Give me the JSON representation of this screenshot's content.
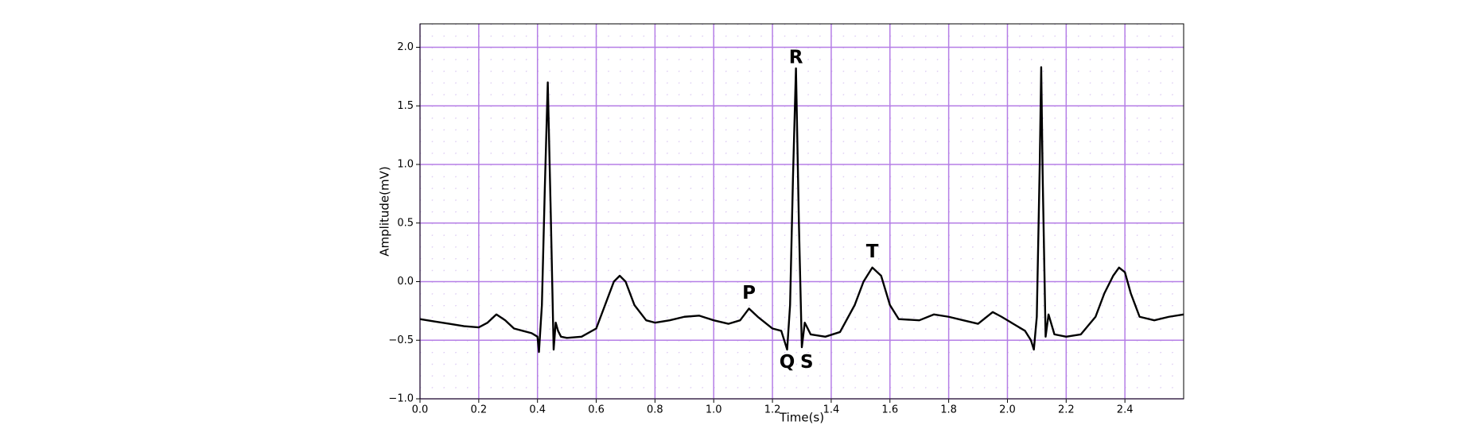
{
  "chart_data": {
    "type": "line",
    "x_label": "Time(s)",
    "y_label": "Amplitude(mV)",
    "xlim": [
      0,
      2.6
    ],
    "ylim": [
      -1.0,
      2.2
    ],
    "xticks": [
      {
        "value": 0,
        "label": "0.0"
      },
      0.2,
      0.4,
      0.6,
      0.8,
      {
        "value": 1,
        "label": "1.0"
      },
      1.2,
      1.4,
      1.6,
      1.8,
      {
        "value": 2,
        "label": "2.0"
      },
      2.2,
      2.4
    ],
    "yticks": [
      {
        "value": -1,
        "label": "−1.0"
      },
      {
        "value": -0.5,
        "label": "−0.5"
      },
      {
        "value": 0,
        "label": "0.0"
      },
      0.5,
      {
        "value": 1,
        "label": "1.0"
      },
      1.5,
      {
        "value": 2,
        "label": "2.0"
      }
    ],
    "grid": true,
    "grid_color": "#b57ee6",
    "minor_dot_color": "#dccbf2",
    "series": [
      {
        "color": "#000000",
        "x": [
          0,
          0.05,
          0.1,
          0.15,
          0.2,
          0.23,
          0.26,
          0.29,
          0.32,
          0.35,
          0.38,
          0.4,
          0.405,
          0.415,
          0.425,
          0.435,
          0.445,
          0.455,
          0.462,
          0.47,
          0.48,
          0.5,
          0.55,
          0.6,
          0.63,
          0.66,
          0.68,
          0.7,
          0.73,
          0.77,
          0.8,
          0.85,
          0.9,
          0.95,
          1.0,
          1.05,
          1.09,
          1.12,
          1.15,
          1.2,
          1.23,
          1.25,
          1.26,
          1.27,
          1.28,
          1.29,
          1.3,
          1.31,
          1.33,
          1.38,
          1.43,
          1.48,
          1.51,
          1.54,
          1.57,
          1.6,
          1.63,
          1.7,
          1.75,
          1.8,
          1.85,
          1.9,
          1.95,
          1.98,
          2.02,
          2.06,
          2.08,
          2.09,
          2.1,
          2.11,
          2.115,
          2.12,
          2.13,
          2.14,
          2.16,
          2.2,
          2.25,
          2.3,
          2.33,
          2.36,
          2.38,
          2.4,
          2.42,
          2.45,
          2.5,
          2.55,
          2.6
        ],
        "values": [
          -0.32,
          -0.34,
          -0.36,
          -0.38,
          -0.39,
          -0.35,
          -0.28,
          -0.33,
          -0.4,
          -0.42,
          -0.44,
          -0.47,
          -0.6,
          -0.2,
          0.8,
          1.7,
          0.6,
          -0.58,
          -0.35,
          -0.42,
          -0.47,
          -0.48,
          -0.47,
          -0.4,
          -0.2,
          0.0,
          0.05,
          0.0,
          -0.2,
          -0.33,
          -0.35,
          -0.33,
          -0.3,
          -0.29,
          -0.33,
          -0.36,
          -0.33,
          -0.23,
          -0.3,
          -0.4,
          -0.42,
          -0.58,
          -0.2,
          0.9,
          1.82,
          0.5,
          -0.56,
          -0.35,
          -0.45,
          -0.47,
          -0.43,
          -0.2,
          0.0,
          0.12,
          0.05,
          -0.2,
          -0.32,
          -0.33,
          -0.28,
          -0.3,
          -0.33,
          -0.36,
          -0.26,
          -0.3,
          -0.36,
          -0.42,
          -0.5,
          -0.58,
          -0.3,
          1.0,
          1.83,
          0.9,
          -0.47,
          -0.28,
          -0.45,
          -0.47,
          -0.45,
          -0.3,
          -0.1,
          0.05,
          0.12,
          0.08,
          -0.1,
          -0.3,
          -0.33,
          -0.3,
          -0.28
        ]
      }
    ],
    "annotations": [
      {
        "text": "P",
        "x": 1.12,
        "y": -0.1,
        "color": "#8a2be2"
      },
      {
        "text": "Q",
        "x": 1.25,
        "y": -0.69,
        "color": "#008000"
      },
      {
        "text": "R",
        "x": 1.28,
        "y": 1.91,
        "color": "#008000"
      },
      {
        "text": "S",
        "x": 1.317,
        "y": -0.69,
        "color": "#008000"
      },
      {
        "text": "T",
        "x": 1.54,
        "y": 0.25,
        "color": "#0000ff"
      }
    ]
  }
}
